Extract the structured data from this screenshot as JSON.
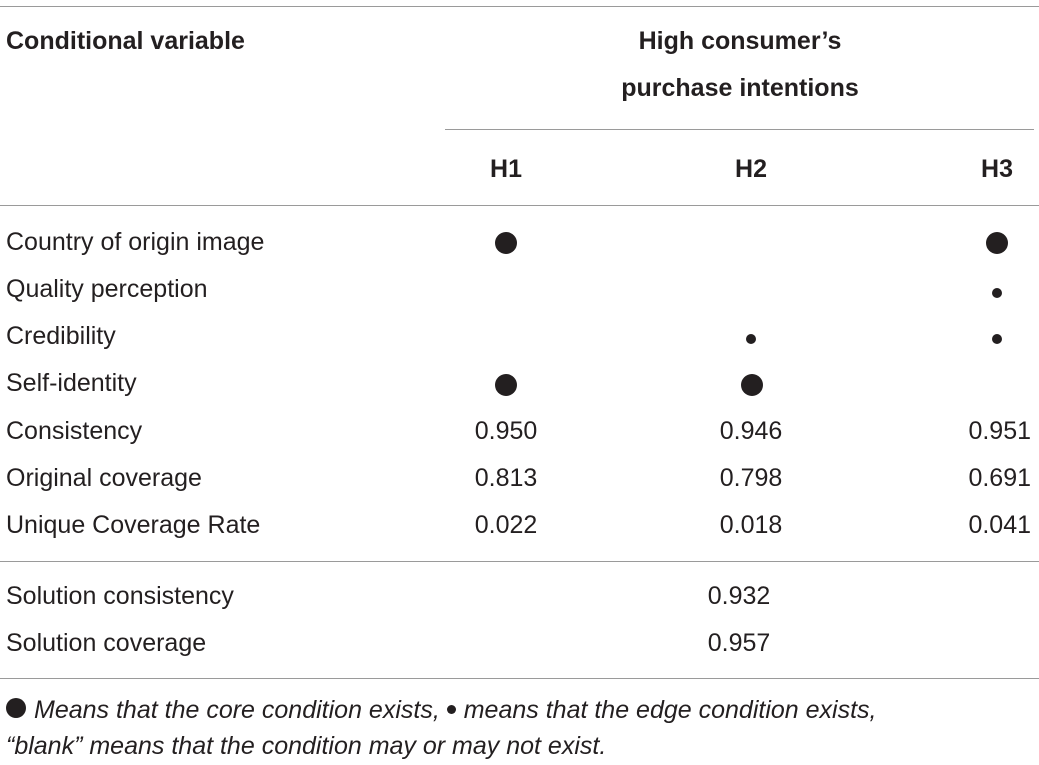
{
  "header": {
    "col0": "Conditional variable",
    "group_line1": "High consumer’s",
    "group_line2": "purchase intentions",
    "h1": "H1",
    "h2": "H2",
    "h3": "H3"
  },
  "rows": [
    {
      "label": "Country of origin image",
      "h1": "core",
      "h2": "blank",
      "h3": "core"
    },
    {
      "label": "Quality perception",
      "h1": "blank",
      "h2": "blank",
      "h3": "edge"
    },
    {
      "label": "Credibility",
      "h1": "blank",
      "h2": "edge",
      "h3": "edge"
    },
    {
      "label": "Self-identity",
      "h1": "core",
      "h2": "core",
      "h3": "blank"
    },
    {
      "label": "Consistency",
      "h1": "0.950",
      "h2": "0.946",
      "h3": "0.951"
    },
    {
      "label": "Original coverage",
      "h1": "0.813",
      "h2": "0.798",
      "h3": "0.691"
    },
    {
      "label": "Unique Coverage Rate",
      "h1": "0.022",
      "h2": "0.018",
      "h3": "0.041"
    }
  ],
  "solution": [
    {
      "label": "Solution consistency",
      "value": "0.932"
    },
    {
      "label": "Solution coverage",
      "value": "0.957"
    }
  ],
  "footnote": {
    "part1": "Means that the core condition exists,",
    "part2": "means that the edge condition exists,",
    "part3": "“blank” means that the condition may or may not exist."
  },
  "legend_icons": [
    "core-condition-dot-icon",
    "edge-condition-dot-icon"
  ]
}
